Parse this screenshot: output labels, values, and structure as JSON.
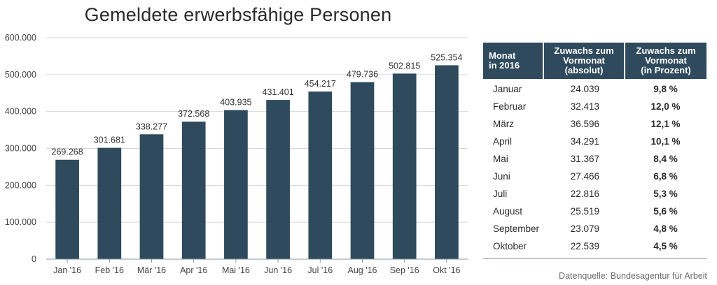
{
  "title": "Gemeldete erwerbsfähige Personen",
  "chart_data": {
    "type": "bar",
    "title": "Gemeldete erwerbsfähige Personen",
    "categories": [
      "Jan '16",
      "Feb '16",
      "Mär '16",
      "Apr '16",
      "Mai '16",
      "Jun '16",
      "Jul '16",
      "Aug '16",
      "Sep '16",
      "Okt '16"
    ],
    "values": [
      269268,
      301681,
      338277,
      372568,
      403935,
      431401,
      454217,
      479736,
      502815,
      525354
    ],
    "value_labels": [
      "269.268",
      "301.681",
      "338.277",
      "372.568",
      "403.935",
      "431.401",
      "454.217",
      "479.736",
      "502.815",
      "525.354"
    ],
    "yticks": [
      0,
      100000,
      200000,
      300000,
      400000,
      500000,
      600000
    ],
    "ytick_labels": [
      "0",
      "100.000",
      "200.000",
      "300.000",
      "400.000",
      "500.000",
      "600.000"
    ],
    "ylim": [
      0,
      600000
    ],
    "xlabel": "",
    "ylabel": "",
    "grid": true,
    "bar_color": "#2f4a5c"
  },
  "table": {
    "headers": [
      "Monat\nin 2016",
      "Zuwachs zum\nVormonat\n(absolut)",
      "Zuwachs zum\nVormonat\n(in Prozent)"
    ],
    "rows": [
      {
        "month": "Januar",
        "absolute": "24.039",
        "percent": "9,8 %"
      },
      {
        "month": "Februar",
        "absolute": "32.413",
        "percent": "12,0 %"
      },
      {
        "month": "März",
        "absolute": "36.596",
        "percent": "12,1 %"
      },
      {
        "month": "April",
        "absolute": "34.291",
        "percent": "10,1 %"
      },
      {
        "month": "Mai",
        "absolute": "31.367",
        "percent": "8,4 %"
      },
      {
        "month": "Juni",
        "absolute": "27.466",
        "percent": "6,8 %"
      },
      {
        "month": "Juli",
        "absolute": "22.816",
        "percent": "5,3 %"
      },
      {
        "month": "August",
        "absolute": "25.519",
        "percent": "5,6 %"
      },
      {
        "month": "September",
        "absolute": "23.079",
        "percent": "4,8 %"
      },
      {
        "month": "Oktober",
        "absolute": "22.539",
        "percent": "4,5 %"
      }
    ]
  },
  "source": "Datenquelle: Bundesagentur für Arbeit",
  "colors": {
    "header_bg": "#2f4a5c",
    "grid": "#d4d8dc",
    "axis": "#8a9aa6"
  }
}
